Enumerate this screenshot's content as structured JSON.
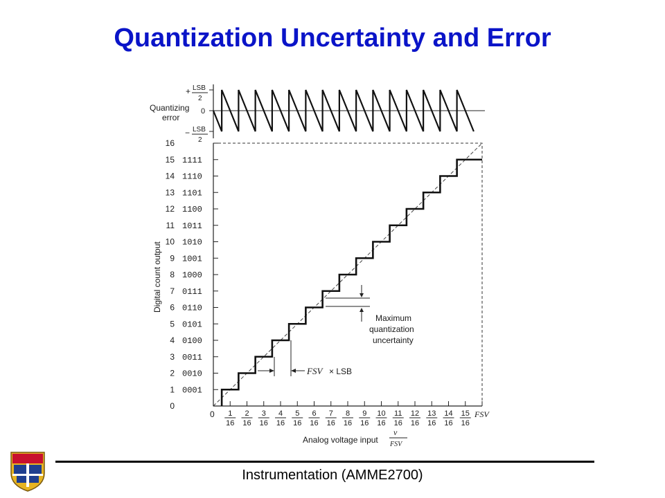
{
  "slide": {
    "title": "Quantization Uncertainty and Error",
    "footer": "Instrumentation (AMME2700)",
    "title_color": "#0a14c8"
  },
  "logo": {
    "icon": "university-crest-icon",
    "colors": [
      "#c8102e",
      "#1f3f8f",
      "#e6b422"
    ]
  },
  "error_plot": {
    "label_line1": "Quantizing",
    "label_line2": "error",
    "plus_sign": "+",
    "minus_sign": "−",
    "lsb_text": "LSB",
    "two_text": "2",
    "zero_text": "0"
  },
  "main_plot": {
    "y_axis_label": "Digital count output",
    "x_axis_label": "Analog voltage input",
    "x_fraction_num": "v",
    "x_fraction_den": "FSV",
    "y_decimal_labels": [
      "0",
      "1",
      "2",
      "3",
      "4",
      "5",
      "6",
      "7",
      "8",
      "9",
      "10",
      "11",
      "12",
      "13",
      "14",
      "15",
      "16"
    ],
    "y_binary_labels": [
      "0001",
      "0010",
      "0011",
      "0100",
      "0101",
      "0110",
      "0111",
      "1000",
      "1001",
      "1010",
      "1011",
      "1100",
      "1101",
      "1110",
      "1111"
    ],
    "x_zero": "0",
    "x_numerators": [
      "1",
      "2",
      "3",
      "4",
      "5",
      "6",
      "7",
      "8",
      "9",
      "10",
      "11",
      "12",
      "13",
      "14",
      "15"
    ],
    "x_denominator": "16",
    "x_end_label": "FSV",
    "annotation_uncertainty": [
      "Maximum",
      "quantization",
      "uncertainty"
    ],
    "annotation_step_fsv": "FSV",
    "annotation_step_rest": "× LSB"
  }
}
